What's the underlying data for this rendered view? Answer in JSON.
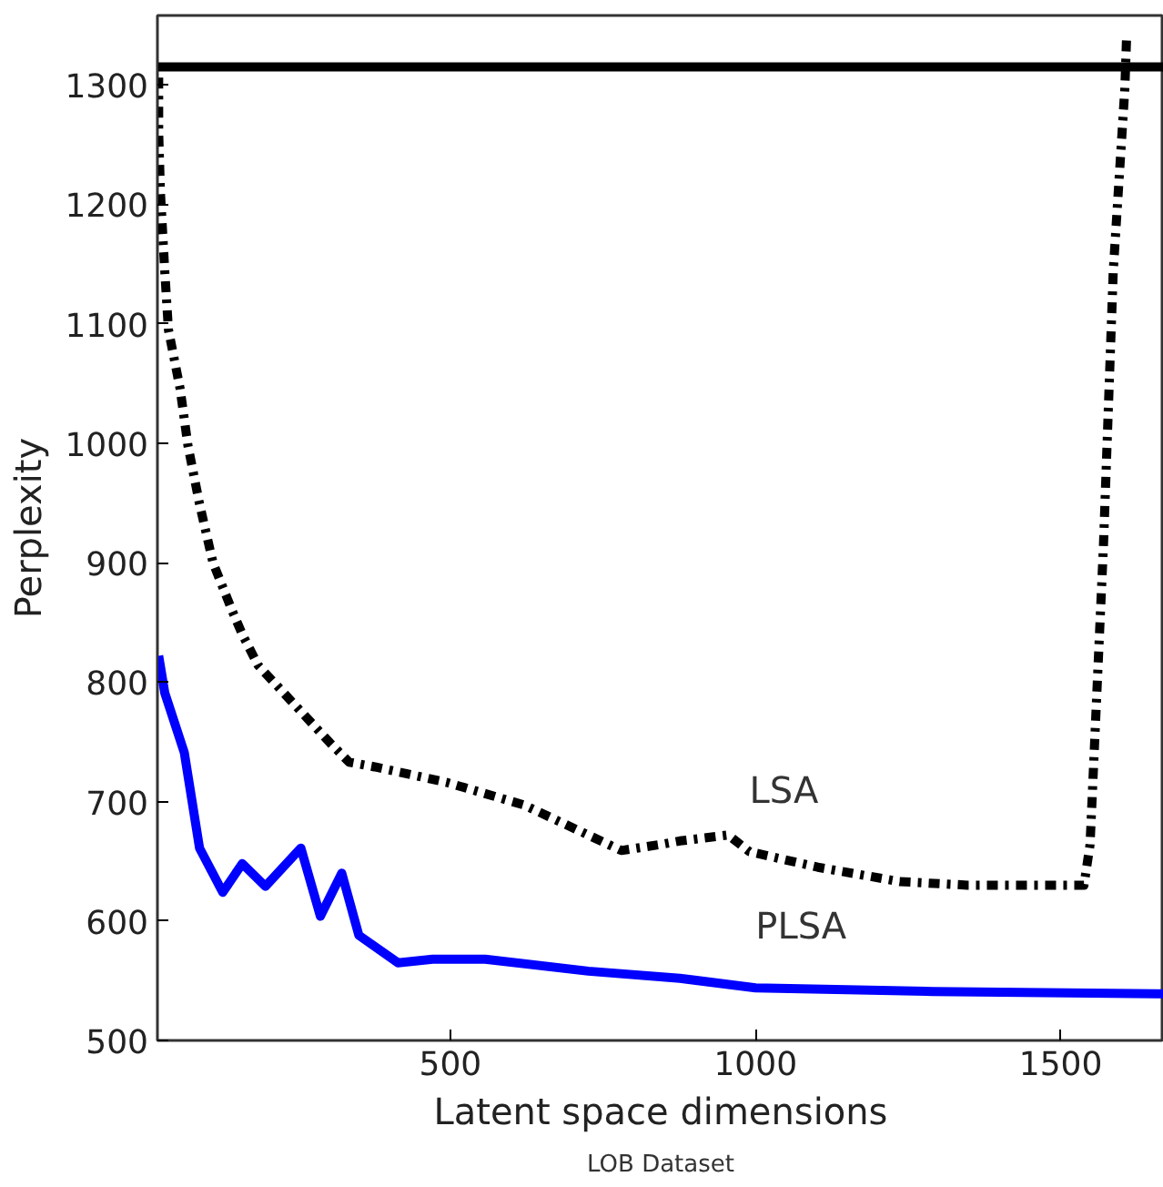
{
  "chart_data": {
    "type": "line",
    "title": "LOB Dataset",
    "xlabel": "Latent space dimensions",
    "ylabel": "Perplexity",
    "xlim": [
      20,
      1669
    ],
    "ylim": [
      500,
      1358
    ],
    "xticks": [
      500,
      1000,
      1500
    ],
    "yticks": [
      500,
      600,
      700,
      800,
      900,
      1000,
      1100,
      1200,
      1300
    ],
    "grid": false,
    "series": [
      {
        "color": "#000000",
        "line_style": "solid",
        "x": [
          20,
          1669
        ],
        "values": [
          1315,
          1315
        ]
      },
      {
        "name": "LSA",
        "color": "#000000",
        "line_style": "dashdot",
        "x": [
          22,
          22,
          25,
          32,
          38,
          57,
          70,
          89,
          111,
          143,
          159,
          185,
          303,
          334,
          376,
          494,
          621,
          780,
          844,
          876,
          955,
          990,
          1102,
          1236,
          1347,
          1538,
          1548,
          1570,
          1586,
          1605,
          1608
        ],
        "values": [
          1306,
          1260,
          1209,
          1144,
          1095,
          1046,
          998,
          949,
          900,
          859,
          840,
          814,
          749,
          733,
          729,
          716,
          697,
          659,
          664,
          667,
          672,
          658,
          645,
          633,
          630,
          630,
          664,
          915,
          1144,
          1297,
          1342
        ]
      },
      {
        "name": "PLSA",
        "color": "#0000ff",
        "line_style": "solid",
        "x": [
          22,
          32,
          64,
          89,
          127,
          159,
          197,
          255,
          287,
          322,
          350,
          414,
          471,
          557,
          726,
          876,
          1000,
          1290,
          1669
        ],
        "values": [
          822,
          791,
          741,
          661,
          624,
          648,
          629,
          661,
          604,
          640,
          588,
          565,
          568,
          568,
          558,
          552,
          544,
          541,
          539
        ]
      }
    ]
  }
}
